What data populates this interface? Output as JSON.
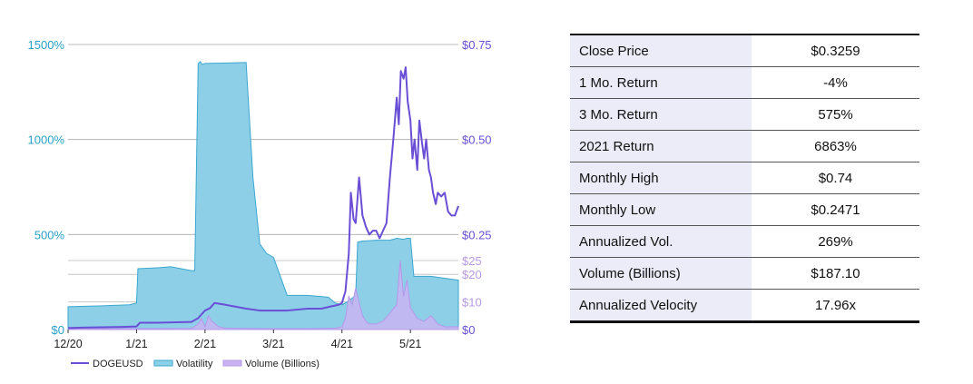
{
  "chart_data": {
    "type": "area",
    "x_ticks": [
      "12/20",
      "1/21",
      "2/21",
      "3/21",
      "4/21",
      "5/21"
    ],
    "y_left": {
      "ticks": [
        "$0",
        "500%",
        "1000%",
        "1500%"
      ],
      "range": [
        0,
        1500
      ],
      "unit": "%"
    },
    "y_right_price": {
      "ticks": [
        "$0.25",
        "$0.50",
        "$0.75"
      ],
      "range": [
        0,
        0.75
      ]
    },
    "y_right_volume": {
      "ticks": [
        "$0",
        "$10",
        "$20",
        "$25"
      ],
      "range": [
        0,
        25
      ]
    },
    "grid": true,
    "legend": "bottom",
    "colors": {
      "dogeusd": "#6a4fd6",
      "volatility_fill": "#8ecfe8",
      "volatility_line": "#3aa7cf",
      "volume_fill": "#c9b4f1",
      "volume_line": "#b597ea"
    },
    "series": [
      {
        "name": "DOGEUSD",
        "x": [
          0,
          0.2,
          0.5,
          0.8,
          1.0,
          1.05,
          1.3,
          1.8,
          1.9,
          1.95,
          2.0,
          2.07,
          2.14,
          2.2,
          2.3,
          2.45,
          2.6,
          2.8,
          3.0,
          3.2,
          3.5,
          3.7,
          3.82,
          3.95,
          4.0,
          4.05,
          4.1,
          4.13,
          4.17,
          4.2,
          4.25,
          4.3,
          4.35,
          4.4,
          4.45,
          4.5,
          4.55,
          4.6,
          4.65,
          4.7,
          4.75,
          4.8,
          4.83,
          4.86,
          4.9,
          4.93,
          4.96,
          5.0,
          5.03,
          5.06,
          5.1,
          5.13,
          5.17,
          5.2,
          5.23,
          5.27,
          5.3,
          5.33,
          5.37,
          5.4,
          5.45,
          5.5,
          5.55,
          5.6,
          5.65,
          5.7
        ],
        "values": [
          0.004,
          0.005,
          0.006,
          0.007,
          0.008,
          0.018,
          0.018,
          0.02,
          0.03,
          0.04,
          0.05,
          0.056,
          0.07,
          0.068,
          0.065,
          0.06,
          0.055,
          0.05,
          0.05,
          0.05,
          0.055,
          0.055,
          0.06,
          0.065,
          0.07,
          0.1,
          0.2,
          0.36,
          0.29,
          0.28,
          0.4,
          0.3,
          0.27,
          0.25,
          0.26,
          0.26,
          0.24,
          0.26,
          0.28,
          0.4,
          0.5,
          0.61,
          0.54,
          0.68,
          0.66,
          0.69,
          0.6,
          0.55,
          0.45,
          0.5,
          0.42,
          0.55,
          0.49,
          0.45,
          0.5,
          0.42,
          0.4,
          0.36,
          0.33,
          0.36,
          0.35,
          0.36,
          0.31,
          0.3,
          0.3,
          0.325
        ]
      },
      {
        "name": "Volatility",
        "x": [
          0,
          0.5,
          0.9,
          1.0,
          1.02,
          1.3,
          1.5,
          1.8,
          1.85,
          1.9,
          1.93,
          1.96,
          2.0,
          2.6,
          2.7,
          2.8,
          2.9,
          3.0,
          3.2,
          3.5,
          3.8,
          3.9,
          4.0,
          4.1,
          4.2,
          4.23,
          4.3,
          4.5,
          4.7,
          4.8,
          4.9,
          4.95,
          5.0,
          5.05,
          5.3,
          5.5,
          5.7
        ],
        "values": [
          120,
          125,
          130,
          140,
          320,
          325,
          330,
          310,
          310,
          1400,
          1410,
          1395,
          1400,
          1405,
          800,
          450,
          400,
          380,
          180,
          180,
          170,
          140,
          130,
          150,
          180,
          460,
          465,
          470,
          470,
          480,
          475,
          480,
          480,
          280,
          280,
          270,
          260
        ]
      },
      {
        "name": "Volume (Billions)",
        "x": [
          0,
          1.8,
          1.9,
          1.95,
          2.0,
          2.05,
          2.1,
          2.15,
          2.2,
          2.3,
          2.5,
          3.0,
          3.5,
          3.9,
          4.0,
          4.05,
          4.1,
          4.15,
          4.2,
          4.25,
          4.3,
          4.35,
          4.4,
          4.5,
          4.6,
          4.7,
          4.8,
          4.85,
          4.9,
          4.95,
          5.0,
          5.05,
          5.1,
          5.2,
          5.3,
          5.4,
          5.5,
          5.6,
          5.7
        ],
        "values": [
          0.2,
          0.4,
          2,
          4,
          1,
          5,
          3,
          2,
          1,
          0.5,
          0.4,
          0.3,
          0.3,
          0.5,
          1,
          4,
          12,
          9,
          15,
          10,
          5,
          3,
          2,
          2,
          3,
          6,
          9,
          25,
          12,
          18,
          8,
          6,
          4,
          3,
          5,
          2,
          1,
          1,
          1
        ]
      }
    ]
  },
  "stats": [
    {
      "label": "Close Price",
      "value": "$0.3259"
    },
    {
      "label": "1 Mo. Return",
      "value": "-4%"
    },
    {
      "label": "3 Mo. Return",
      "value": "575%"
    },
    {
      "label": "2021 Return",
      "value": "6863%"
    },
    {
      "label": "Monthly High",
      "value": "$0.74"
    },
    {
      "label": "Monthly Low",
      "value": "$0.2471"
    },
    {
      "label": "Annualized Vol.",
      "value": "269%"
    },
    {
      "label": "Volume (Billions)",
      "value": "$187.10"
    },
    {
      "label": "Annualized Velocity",
      "value": "17.96x"
    }
  ]
}
